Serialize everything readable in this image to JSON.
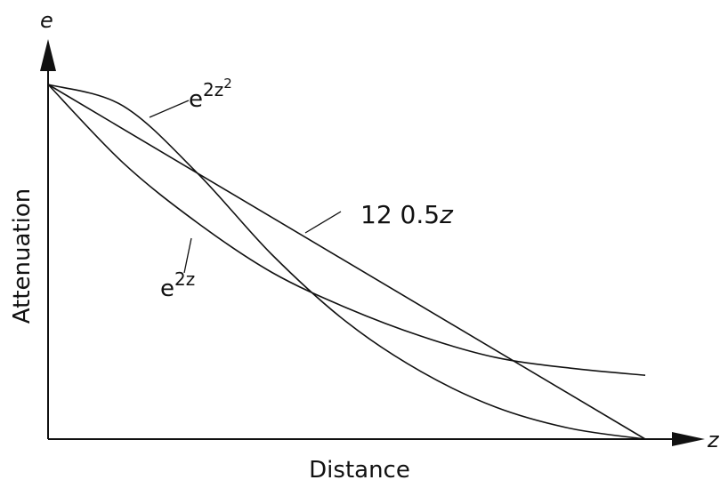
{
  "chart_data": {
    "type": "line",
    "xlabel": "Distance",
    "ylabel": "Attenuation",
    "x_axis_symbol": "z",
    "y_axis_symbol": "e",
    "xlim": [
      0,
      2
    ],
    "ylim": [
      0,
      1
    ],
    "grid": false,
    "series": [
      {
        "label_base": "e",
        "label_sup": "2z",
        "label_sup2": "",
        "x": [
          0,
          0.25,
          0.5,
          0.75,
          1.0,
          1.25,
          1.5,
          1.75,
          2.0
        ],
        "values": [
          1.0,
          0.78,
          0.61,
          0.47,
          0.37,
          0.29,
          0.23,
          0.2,
          0.18
        ]
      },
      {
        "label_base": "e",
        "label_sup": "2z",
        "label_sup2": "2",
        "x": [
          0,
          0.25,
          0.5,
          0.75,
          1.0,
          1.25,
          1.5,
          1.75,
          2.0
        ],
        "values": [
          1.0,
          0.94,
          0.75,
          0.52,
          0.33,
          0.19,
          0.09,
          0.03,
          0.0
        ]
      },
      {
        "label_base": "12 0.5",
        "label_sup": "",
        "label_sup2": "",
        "label_italic": "z",
        "x": [
          0,
          2.0
        ],
        "values": [
          1.0,
          0.0
        ]
      }
    ]
  }
}
